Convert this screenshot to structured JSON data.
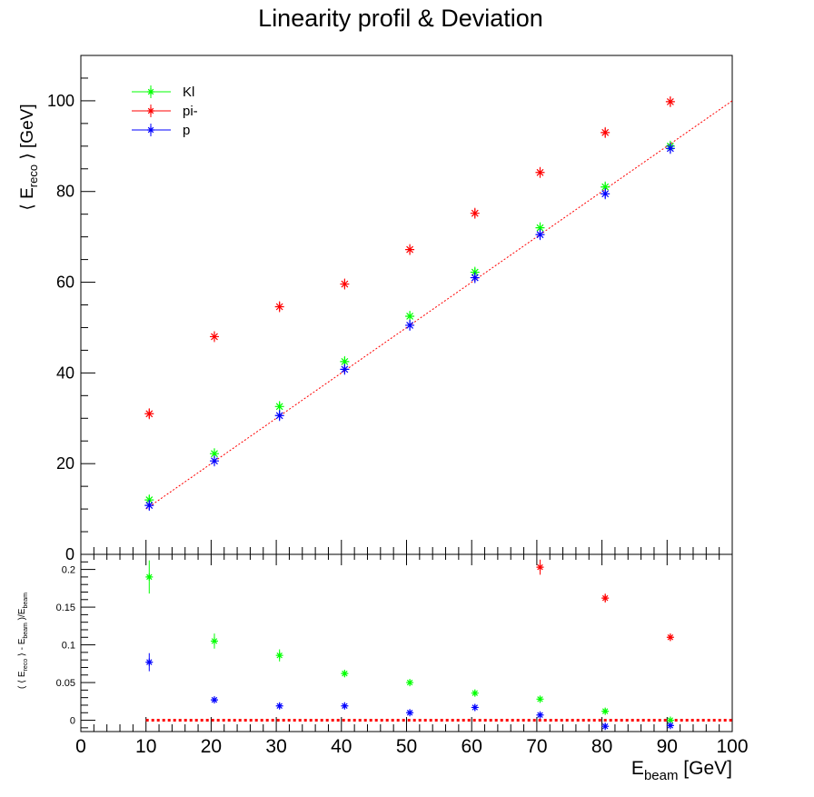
{
  "chart_data": [
    {
      "type": "scatter",
      "title": "Linearity profil & Deviation",
      "ylabel": "⟨ E_reco ⟩ [GeV]",
      "xlim": [
        0,
        100
      ],
      "ylim": [
        0,
        110
      ],
      "yticks": [
        0,
        20,
        40,
        60,
        80,
        100
      ],
      "legend_position": "top-left",
      "reference_line": {
        "x": [
          10,
          100
        ],
        "y": [
          10,
          100
        ],
        "color": "#ff0000",
        "style": "dotted"
      },
      "series": [
        {
          "name": "Kl",
          "color": "#00ff00",
          "marker": "star",
          "x": [
            10.5,
            20.5,
            30.5,
            40.5,
            50.5,
            60.5,
            70.5,
            80.5,
            90.5
          ],
          "y": [
            12.0,
            22.2,
            32.6,
            42.5,
            52.5,
            62.2,
            72.0,
            81.0,
            90.0
          ]
        },
        {
          "name": "pi-",
          "color": "#ff0000",
          "marker": "star",
          "x": [
            10.5,
            20.5,
            30.5,
            40.5,
            50.5,
            60.5,
            70.5,
            80.5,
            90.5
          ],
          "y": [
            31.0,
            48.0,
            54.6,
            59.6,
            67.2,
            75.2,
            84.2,
            93.0,
            99.8
          ]
        },
        {
          "name": "p",
          "color": "#0000ff",
          "marker": "star",
          "x": [
            10.5,
            20.5,
            30.5,
            40.5,
            50.5,
            60.5,
            70.5,
            80.5,
            90.5
          ],
          "y": [
            10.8,
            20.6,
            30.6,
            40.8,
            50.5,
            61.0,
            70.5,
            79.5,
            89.5
          ]
        }
      ]
    },
    {
      "type": "scatter",
      "xlabel": "E_beam [GeV]",
      "ylabel": "( ⟨ E_reco ⟩ - E_beam )/E_beam",
      "xlim": [
        0,
        100
      ],
      "ylim": [
        -0.015,
        0.22
      ],
      "xticks": [
        0,
        10,
        20,
        30,
        40,
        50,
        60,
        70,
        80,
        90,
        100
      ],
      "yticks": [
        0,
        0.05,
        0.1,
        0.15,
        0.2
      ],
      "ytick_labels": [
        "0",
        "0.05",
        "0.1",
        "0.15",
        "0.2"
      ],
      "reference_line": {
        "x": [
          10,
          100
        ],
        "y": [
          0,
          0
        ],
        "color": "#ff0000",
        "style": "dotted"
      },
      "series": [
        {
          "name": "Kl",
          "color": "#00ff00",
          "x": [
            10.5,
            20.5,
            30.5,
            40.5,
            50.5,
            60.5,
            70.5,
            80.5,
            90.5
          ],
          "y": [
            0.19,
            0.105,
            0.086,
            0.062,
            0.05,
            0.036,
            0.028,
            0.012,
            0.0
          ],
          "err": [
            0.022,
            0.01,
            0.008,
            0.005,
            0.004,
            0.004,
            0.003,
            0.003,
            0.003
          ]
        },
        {
          "name": "pi-",
          "color": "#ff0000",
          "x": [
            70.5,
            80.5,
            90.5
          ],
          "y": [
            0.203,
            0.162,
            0.11
          ],
          "err": [
            0.01,
            0.006,
            0.005
          ]
        },
        {
          "name": "p",
          "color": "#0000ff",
          "x": [
            10.5,
            20.5,
            30.5,
            40.5,
            50.5,
            60.5,
            70.5,
            80.5,
            90.5
          ],
          "y": [
            0.077,
            0.027,
            0.019,
            0.019,
            0.01,
            0.017,
            0.007,
            -0.008,
            -0.007
          ],
          "err": [
            0.012,
            0.004,
            0.004,
            0.004,
            0.004,
            0.004,
            0.004,
            0.004,
            0.004
          ]
        }
      ]
    }
  ]
}
